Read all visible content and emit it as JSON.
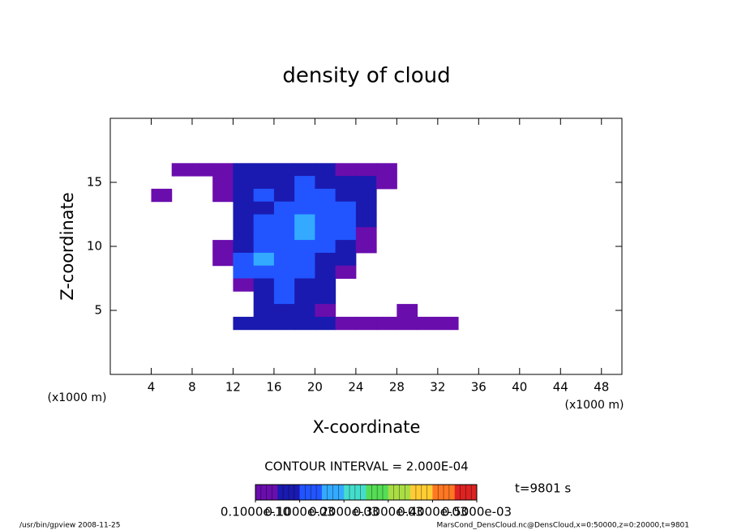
{
  "chart_data": {
    "type": "contour",
    "title": "density of cloud",
    "xlabel": "X-coordinate",
    "ylabel": "Z-coordinate",
    "xunit": "(x1000 m)",
    "yunit": "(x1000 m)",
    "xlim": [
      0,
      50
    ],
    "ylim": [
      0,
      20
    ],
    "xticks": [
      4,
      8,
      12,
      16,
      20,
      24,
      28,
      32,
      36,
      40,
      44,
      48
    ],
    "yticks": [
      5,
      10,
      15
    ],
    "field": {
      "x": [
        5,
        7,
        9,
        11,
        13,
        15,
        17,
        19,
        21,
        23,
        25,
        27,
        29,
        31,
        33,
        35
      ],
      "z": [
        16,
        15,
        14,
        13,
        12,
        11,
        10,
        9,
        8,
        7,
        6,
        5,
        4
      ],
      "values": [
        [
          null,
          3e-05,
          3e-05,
          3e-05,
          8e-05,
          8e-05,
          8e-05,
          8e-05,
          8e-05,
          3e-05,
          3e-05,
          3e-05,
          null,
          null,
          null,
          null
        ],
        [
          null,
          null,
          null,
          3e-05,
          8e-05,
          8e-05,
          8e-05,
          0.00013,
          8e-05,
          8e-05,
          8e-05,
          3e-05,
          null,
          null,
          null,
          null
        ],
        [
          3e-05,
          null,
          null,
          3e-05,
          8e-05,
          0.00013,
          8e-05,
          0.00013,
          0.00013,
          8e-05,
          8e-05,
          null,
          null,
          null,
          null,
          null
        ],
        [
          null,
          null,
          null,
          null,
          8e-05,
          8e-05,
          0.00013,
          0.00013,
          0.00013,
          0.00013,
          8e-05,
          null,
          null,
          null,
          null,
          null
        ],
        [
          null,
          null,
          null,
          null,
          8e-05,
          0.00013,
          0.00013,
          0.00018,
          0.00013,
          0.00013,
          8e-05,
          null,
          null,
          null,
          null,
          null
        ],
        [
          null,
          null,
          null,
          null,
          8e-05,
          0.00013,
          0.00013,
          0.00018,
          0.00013,
          0.00013,
          3e-05,
          null,
          null,
          null,
          null,
          null
        ],
        [
          null,
          null,
          null,
          3e-05,
          8e-05,
          0.00013,
          0.00013,
          0.00013,
          0.00013,
          8e-05,
          3e-05,
          null,
          null,
          null,
          null,
          null
        ],
        [
          null,
          null,
          null,
          3e-05,
          0.00013,
          0.00018,
          0.00013,
          0.00013,
          8e-05,
          8e-05,
          null,
          null,
          null,
          null,
          null,
          null
        ],
        [
          null,
          null,
          null,
          null,
          0.00013,
          0.00013,
          0.00013,
          0.00013,
          8e-05,
          3e-05,
          null,
          null,
          null,
          null,
          null,
          null
        ],
        [
          null,
          null,
          null,
          null,
          3e-05,
          8e-05,
          0.00013,
          8e-05,
          8e-05,
          null,
          null,
          null,
          null,
          null,
          null,
          null
        ],
        [
          null,
          null,
          null,
          null,
          null,
          8e-05,
          0.00013,
          8e-05,
          8e-05,
          null,
          null,
          null,
          null,
          null,
          null,
          null
        ],
        [
          null,
          null,
          null,
          null,
          null,
          8e-05,
          8e-05,
          8e-05,
          3e-05,
          null,
          null,
          null,
          3e-05,
          null,
          null,
          null
        ],
        [
          null,
          null,
          null,
          null,
          8e-05,
          8e-05,
          8e-05,
          8e-05,
          8e-05,
          3e-05,
          3e-05,
          3e-05,
          3e-05,
          3e-05,
          3e-05,
          null
        ]
      ]
    },
    "colorbar": {
      "lim": [
        0,
        0.0005
      ],
      "colors": [
        "#6a0dad",
        "#1a1ab0",
        "#2255ff",
        "#33aaff",
        "#44ddcc",
        "#55dd55",
        "#aadd44",
        "#ffcc33",
        "#ff7722",
        "#dd2222"
      ],
      "ticks": [
        {
          "value": 1e-11,
          "label": "0.1000e-10"
        },
        {
          "value": 0.0001,
          "label": "0.1000e-03"
        },
        {
          "value": 0.0002,
          "label": "0.2000e-03"
        },
        {
          "value": 0.0003,
          "label": "0.3000e-03"
        },
        {
          "value": 0.0004,
          "label": "0.4000e-03"
        },
        {
          "value": 0.0005,
          "label": "0.5000e-03"
        }
      ]
    },
    "contour_interval": "CONTOUR INTERVAL = 2.000E-04",
    "time": "t=9801 s",
    "footer_left": "/usr/bin/gpview   2008-11-25",
    "footer_right": "MarsCond_DensCloud.nc@DensCloud,x=0:50000,z=0:20000,t=9801"
  }
}
